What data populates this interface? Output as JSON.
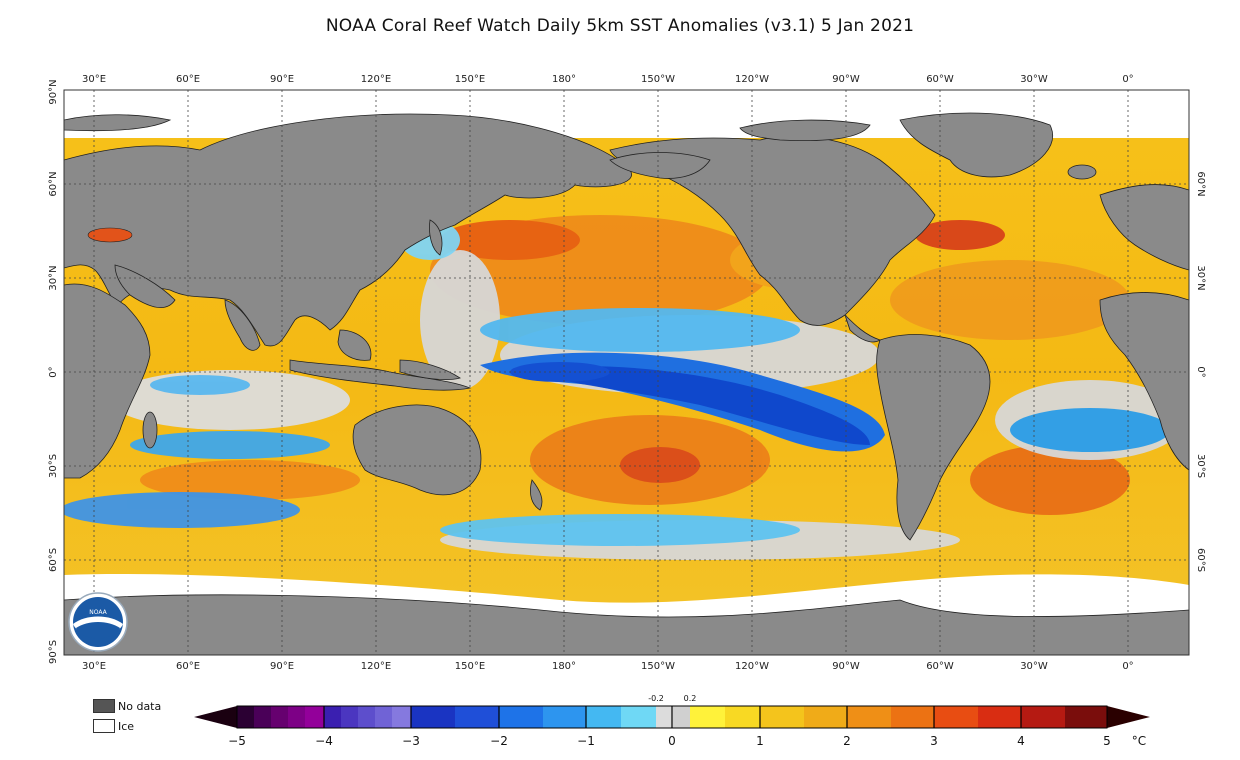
{
  "title": "NOAA Coral Reef Watch Daily 5km SST Anomalies  (v3.1)    5 Jan 2021",
  "longitude_labels": [
    "30°E",
    "60°E",
    "90°E",
    "120°E",
    "150°E",
    "180°",
    "150°W",
    "120°W",
    "90°W",
    "60°W",
    "30°W",
    "0°"
  ],
  "latitude_labels_left": [
    "90°N",
    "60°N",
    "30°N",
    "0°",
    "30°S",
    "60°S",
    "90°S"
  ],
  "latitude_labels_right": [
    "60°N",
    "30°N",
    "0°",
    "30°S",
    "60°S"
  ],
  "legend": {
    "no_data": "No data",
    "ice": "Ice",
    "unit": "°C",
    "tick_labels": [
      "−5",
      "−4",
      "−3",
      "−2",
      "−1",
      "0",
      "1",
      "2",
      "3",
      "4",
      "5"
    ],
    "small_labels": [
      "-0.2",
      "0.2"
    ],
    "colors": {
      "no_data": "#555555",
      "land": "#8a8a8a",
      "ice": "#ffffff",
      "neutral": "#dcdcdc"
    }
  }
}
